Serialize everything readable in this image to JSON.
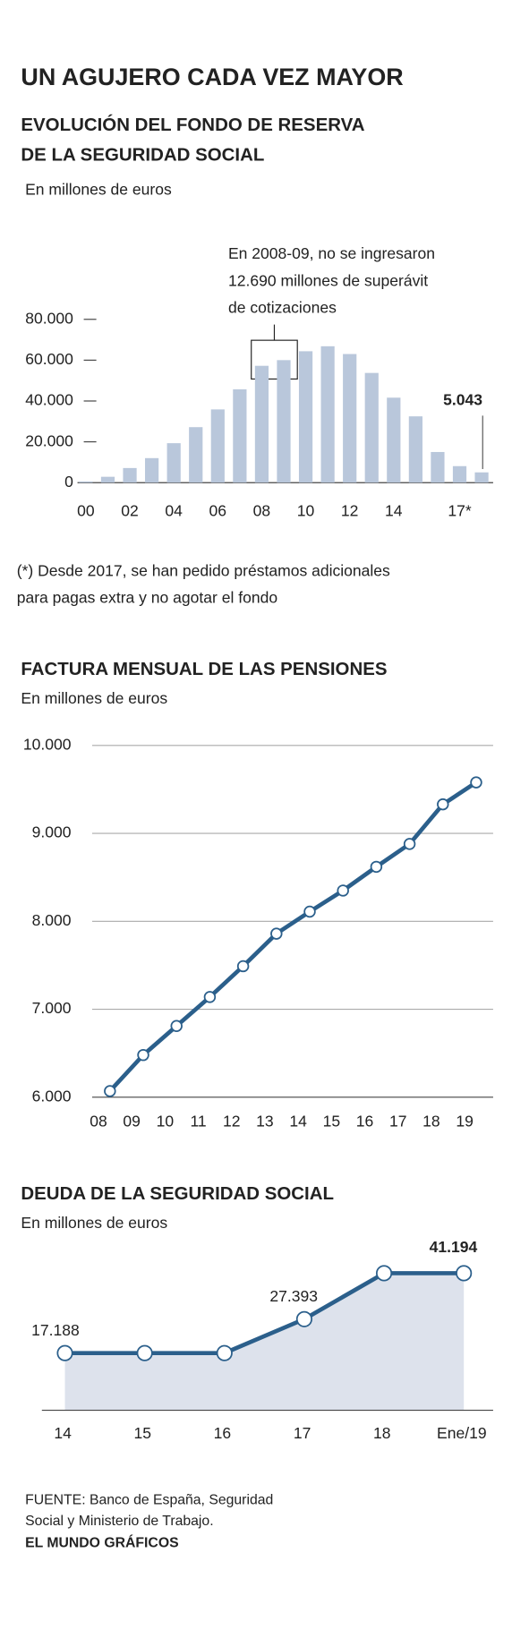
{
  "title": "UN AGUJERO CADA VEZ MAYOR",
  "chart_data": [
    {
      "type": "bar",
      "title": [
        "EVOLUCIÓN DEL FONDO DE RESERVA",
        "DE LA SEGURIDAD SOCIAL"
      ],
      "subtitle": "En millones de euros",
      "annotation": [
        "En 2008-09, no se ingresaron",
        "12.690 millones de superávit",
        "de cotizaciones"
      ],
      "note": [
        "(*) Desde 2017, se han pedido préstamos adicionales",
        "para pagas extra y no agotar el fondo"
      ],
      "categories": [
        "00",
        null,
        "02",
        null,
        "04",
        null,
        "06",
        null,
        "08",
        null,
        "10",
        null,
        "12",
        null,
        "14",
        null,
        null,
        "17*",
        null
      ],
      "values": [
        601,
        2880,
        7168,
        12024,
        19330,
        27192,
        35880,
        45716,
        57223,
        60022,
        64375,
        66815,
        63008,
        53744,
        41634,
        32481,
        15020,
        8095,
        5043
      ],
      "value_labels": [
        null,
        null,
        null,
        null,
        null,
        null,
        null,
        null,
        null,
        null,
        null,
        null,
        null,
        null,
        null,
        null,
        null,
        null,
        "5.043"
      ],
      "color": "#b9c7db",
      "ylim": [
        0,
        80000
      ],
      "yticks": [
        0,
        {
          "value": 20000,
          "label": "20.000"
        },
        {
          "value": 40000,
          "label": "40.000"
        },
        {
          "value": 60000,
          "label": "60.000"
        },
        {
          "value": 80000,
          "label": "80.000"
        }
      ]
    },
    {
      "type": "line",
      "title": "FACTURA MENSUAL DE LAS PENSIONES",
      "subtitle": "En millones de euros",
      "categories": [
        "08",
        "09",
        "10",
        "11",
        "12",
        "13",
        "14",
        "15",
        "16",
        "17",
        "18",
        "19"
      ],
      "values": [
        6070,
        6480,
        6810,
        7140,
        7490,
        7860,
        8110,
        8350,
        8620,
        8880,
        9330,
        9580
      ],
      "color": "#2b5f8b",
      "ylim": [
        6000,
        10000
      ],
      "yticks": [
        {
          "value": 6000,
          "label": "6.000"
        },
        {
          "value": 7000,
          "label": "7.000"
        },
        {
          "value": 8000,
          "label": "8.000"
        },
        {
          "value": 9000,
          "label": "9.000"
        },
        {
          "value": 10000,
          "label": "10.000"
        }
      ],
      "grid": true
    },
    {
      "type": "area",
      "title": "DEUDA DE LA SEGURIDAD SOCIAL",
      "subtitle": "En millones de euros",
      "categories": [
        "14",
        "15",
        "16",
        "17",
        "18",
        "Ene/19"
      ],
      "values": [
        17188,
        17188,
        17188,
        27393,
        41194,
        41194
      ],
      "value_labels": [
        "17.188",
        null,
        null,
        "27.393",
        null,
        "41.194"
      ],
      "color": "#2b5f8b",
      "fill": "#dde2ec",
      "ylim": [
        0,
        45000
      ]
    }
  ],
  "source": [
    "FUENTE: Banco de España, Seguridad",
    "Social y Ministerio de Trabajo."
  ],
  "credit": "EL MUNDO GRÁFICOS"
}
